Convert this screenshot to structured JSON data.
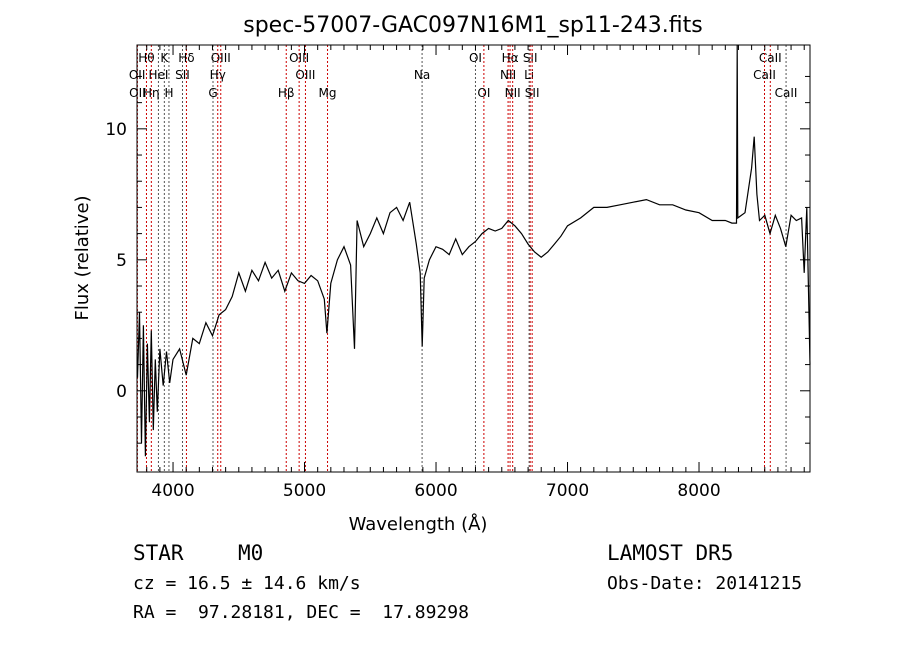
{
  "chart_data": {
    "type": "line",
    "title": "spec-57007-GAC097N16M1_sp11-243.fits",
    "xlabel": "Wavelength (Å)",
    "ylabel": "Flux (relative)",
    "xlim": [
      3726,
      8844
    ],
    "ylim": [
      -3.1,
      13.2
    ],
    "xticks": [
      4000,
      5000,
      6000,
      7000,
      8000
    ],
    "yticks": [
      0,
      5,
      10
    ],
    "series": [
      {
        "name": "spectrum",
        "x": [
          3730,
          3745,
          3760,
          3775,
          3790,
          3805,
          3820,
          3835,
          3850,
          3865,
          3880,
          3900,
          3925,
          3950,
          3975,
          4000,
          4050,
          4100,
          4150,
          4200,
          4250,
          4300,
          4350,
          4400,
          4450,
          4500,
          4550,
          4600,
          4650,
          4700,
          4750,
          4800,
          4850,
          4900,
          4950,
          5000,
          5050,
          5100,
          5150,
          5170,
          5200,
          5250,
          5300,
          5350,
          5380,
          5400,
          5450,
          5500,
          5550,
          5600,
          5650,
          5700,
          5750,
          5800,
          5850,
          5880,
          5895,
          5910,
          5950,
          6000,
          6050,
          6100,
          6150,
          6200,
          6250,
          6300,
          6350,
          6400,
          6450,
          6500,
          6550,
          6600,
          6650,
          6700,
          6750,
          6800,
          6850,
          6900,
          6950,
          7000,
          7100,
          7200,
          7300,
          7400,
          7500,
          7600,
          7700,
          7800,
          7900,
          8000,
          8100,
          8200,
          8250,
          8285,
          8290,
          8295,
          8350,
          8400,
          8420,
          8440,
          8460,
          8500,
          8540,
          8580,
          8620,
          8660,
          8700,
          8740,
          8780,
          8800,
          8820,
          8844
        ],
        "y": [
          0.5,
          3,
          -2,
          2.5,
          -2.5,
          1.8,
          -1.2,
          2.3,
          -1.5,
          1.2,
          -0.8,
          1.6,
          0.2,
          1.5,
          0.3,
          1.2,
          1.6,
          0.6,
          2,
          1.8,
          2.6,
          2.1,
          2.9,
          3.1,
          3.6,
          4.5,
          3.8,
          4.6,
          4.2,
          4.9,
          4.3,
          4.6,
          3.8,
          4.5,
          4.2,
          4.1,
          4.4,
          4.2,
          3.5,
          2.2,
          4.1,
          5,
          5.5,
          4.8,
          1.6,
          6.5,
          5.5,
          6,
          6.6,
          6,
          6.8,
          7,
          6.5,
          7.2,
          5.6,
          4.5,
          1.7,
          4.3,
          5,
          5.5,
          5.4,
          5.2,
          5.8,
          5.2,
          5.5,
          5.7,
          6,
          6.2,
          6.1,
          6.2,
          6.5,
          6.3,
          6,
          5.6,
          5.3,
          5.1,
          5.3,
          5.6,
          5.9,
          6.3,
          6.6,
          7,
          7,
          7.1,
          7.2,
          7.3,
          7.1,
          7.1,
          6.9,
          6.8,
          6.5,
          6.5,
          6.4,
          6.4,
          13.5,
          6.6,
          6.8,
          8.5,
          9.7,
          7.5,
          6.5,
          6.7,
          6,
          6.7,
          6.2,
          5.5,
          6.7,
          6.5,
          6.6,
          4.5,
          7,
          1
        ]
      }
    ],
    "lines": [
      {
        "name": "Hθ",
        "wave": 3798,
        "row": 0,
        "emission": true
      },
      {
        "name": "K",
        "wave": 3934,
        "row": 0,
        "emission": false
      },
      {
        "name": "Hδ",
        "wave": 4102,
        "row": 0,
        "emission": true
      },
      {
        "name": "OIII",
        "wave": 4363,
        "row": 0,
        "emission": true
      },
      {
        "name": "OIII",
        "wave": 4959,
        "row": 0,
        "emission": true
      },
      {
        "name": "OI",
        "wave": 6300,
        "row": 0,
        "emission": false
      },
      {
        "name": "Hα",
        "wave": 6563,
        "row": 0,
        "emission": true
      },
      {
        "name": "SII",
        "wave": 6716,
        "row": 0,
        "emission": true
      },
      {
        "name": "CaII",
        "wave": 8542,
        "row": 0,
        "emission": true
      },
      {
        "name": "OII",
        "wave": 3727,
        "row": 1,
        "emission": true
      },
      {
        "name": "HeI",
        "wave": 3889,
        "row": 1,
        "emission": false
      },
      {
        "name": "SII",
        "wave": 4072,
        "row": 1,
        "emission": false
      },
      {
        "name": "Hγ",
        "wave": 4340,
        "row": 1,
        "emission": true
      },
      {
        "name": "OIII",
        "wave": 5007,
        "row": 1,
        "emission": true
      },
      {
        "name": "Na",
        "wave": 5894,
        "row": 1,
        "emission": false
      },
      {
        "name": "NII",
        "wave": 6548,
        "row": 1,
        "emission": true
      },
      {
        "name": "Li",
        "wave": 6708,
        "row": 1,
        "emission": false
      },
      {
        "name": "CaII",
        "wave": 8498,
        "row": 1,
        "emission": true
      },
      {
        "name": "OII",
        "wave": 3729,
        "row": 2,
        "emission": true
      },
      {
        "name": "Hη",
        "wave": 3835,
        "row": 2,
        "emission": true
      },
      {
        "name": "H",
        "wave": 3969,
        "row": 2,
        "emission": false
      },
      {
        "name": "G",
        "wave": 4304,
        "row": 2,
        "emission": false
      },
      {
        "name": "Hβ",
        "wave": 4861,
        "row": 2,
        "emission": true
      },
      {
        "name": "Mg",
        "wave": 5175,
        "row": 2,
        "emission": true
      },
      {
        "name": "OI",
        "wave": 6364,
        "row": 2,
        "emission": true
      },
      {
        "name": "NII",
        "wave": 6583,
        "row": 2,
        "emission": true
      },
      {
        "name": "SII",
        "wave": 6731,
        "row": 2,
        "emission": true
      },
      {
        "name": "CaII",
        "wave": 8662,
        "row": 2,
        "emission": false
      }
    ],
    "colors": {
      "emission": "#cc0000",
      "absorption": "#555555",
      "spectrum": "#000000"
    }
  },
  "info": {
    "class": "STAR",
    "subclass": "M0",
    "cz": "cz = 16.5 ± 14.6 km/s",
    "radec": "RA =  97.28181, DEC =  17.89298",
    "survey": "LAMOST DR5",
    "obsdate": "Obs-Date: 20141215"
  }
}
